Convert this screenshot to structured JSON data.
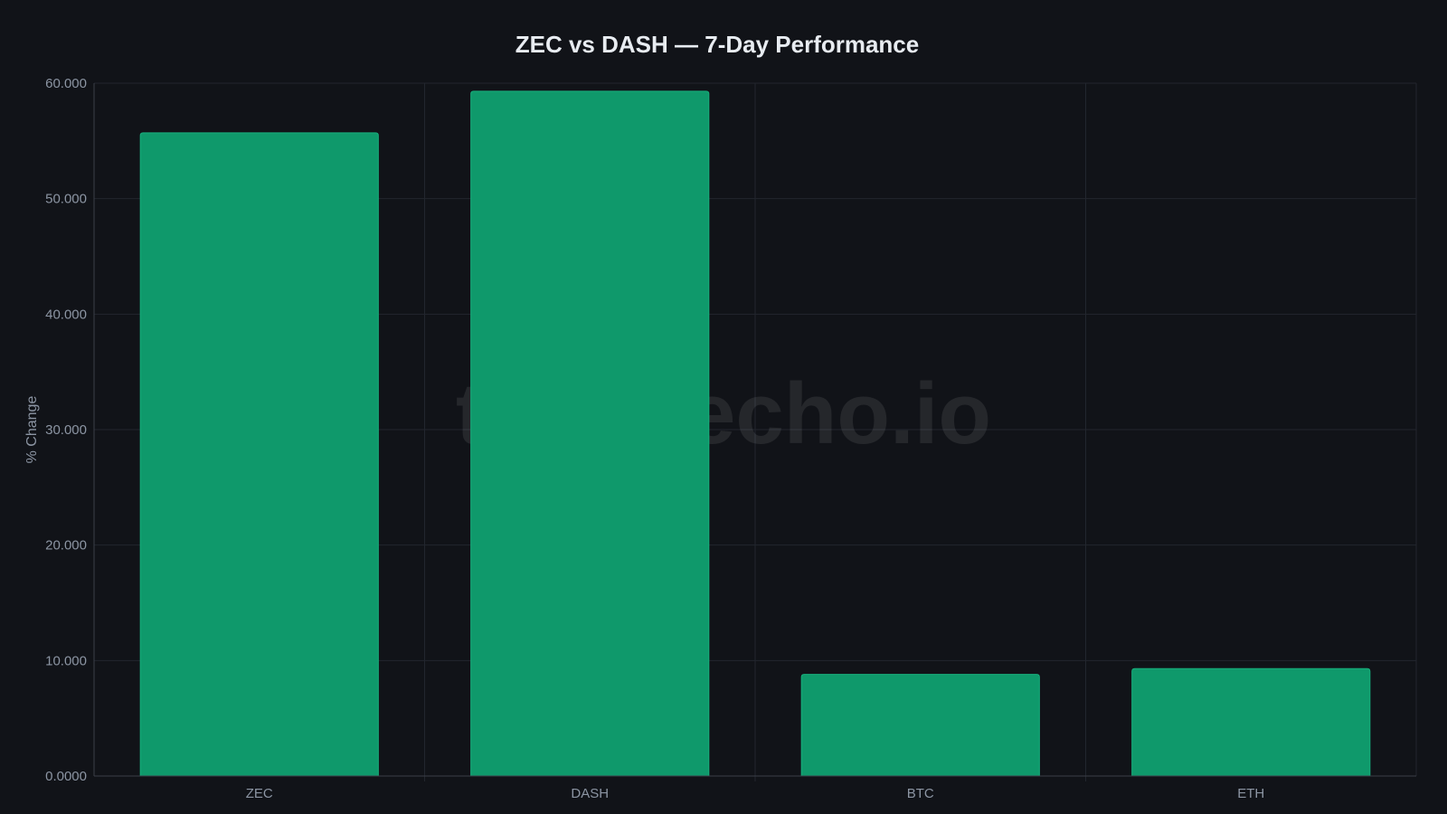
{
  "chart_data": {
    "type": "bar",
    "title": "ZEC vs DASH — 7-Day Performance",
    "xlabel": "",
    "ylabel": "% Change",
    "categories": [
      "ZEC",
      "DASH",
      "BTC",
      "ETH"
    ],
    "values": [
      55.7,
      59.3,
      8.8,
      9.3
    ],
    "ylim": [
      0,
      60
    ],
    "yticks": [
      0,
      10,
      20,
      30,
      40,
      50,
      60
    ],
    "ytick_labels": [
      "0.0000",
      "10.000",
      "20.000",
      "30.000",
      "40.000",
      "50.000",
      "60.000"
    ],
    "grid": true,
    "legend": "none"
  },
  "watermark": "tokenecho.io",
  "colors": {
    "background": "#111318",
    "bar_fill": "#0f996b",
    "bar_stroke": "#18b07d",
    "grid": "#22262e",
    "axis": "#3a3f48",
    "tick_text": "#8c95a3",
    "title_text": "#e8ecf1"
  }
}
